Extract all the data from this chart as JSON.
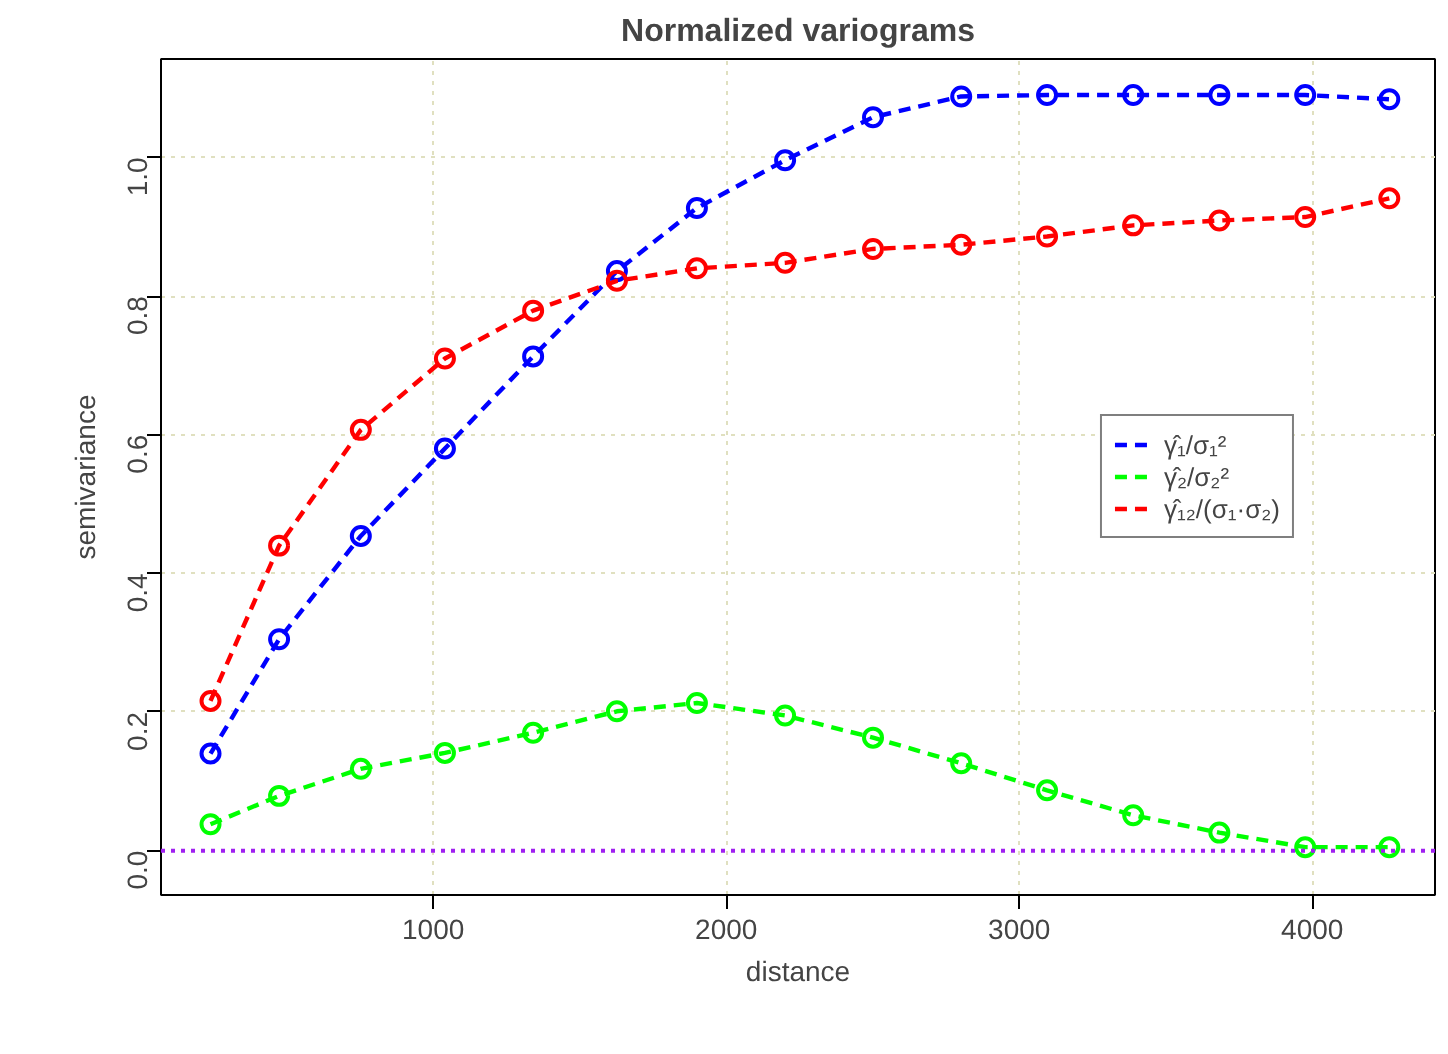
{
  "chart_data": {
    "type": "line",
    "title": "Normalized variograms",
    "xlabel": "distance",
    "ylabel": "semivariance",
    "x": [
      240,
      474,
      753,
      1040,
      1341,
      1627,
      1900,
      2201,
      2501,
      2802,
      3095,
      3389,
      3683,
      3976,
      4263
    ],
    "series": [
      {
        "name": "γ̂₁/σ₁²",
        "color": "#0000ff",
        "values": [
          0.14,
          0.305,
          0.454,
          0.58,
          0.713,
          0.836,
          0.927,
          0.996,
          1.058,
          1.088,
          1.09,
          1.09,
          1.09,
          1.09,
          1.084
        ]
      },
      {
        "name": "γ̂₂/σ₂²",
        "color": "#00ff00",
        "values": [
          0.038,
          0.079,
          0.118,
          0.141,
          0.17,
          0.201,
          0.213,
          0.195,
          0.163,
          0.126,
          0.087,
          0.051,
          0.026,
          0.005,
          0.005
        ]
      },
      {
        "name": "γ̂₁₂/(σ₁·σ₂)",
        "color": "#ff0000",
        "values": [
          0.216,
          0.44,
          0.607,
          0.71,
          0.779,
          0.822,
          0.84,
          0.848,
          0.868,
          0.874,
          0.886,
          0.902,
          0.909,
          0.914,
          0.941
        ]
      }
    ],
    "xlim": [
      71,
      4419
    ],
    "ylim": [
      -0.064,
      1.142
    ],
    "xticks": [
      1000,
      2000,
      3000,
      4000
    ],
    "yticks": [
      {
        "value": 0,
        "label": "0.0"
      },
      0.2,
      0.4,
      0.6,
      0.8,
      {
        "value": 1,
        "label": "1.0"
      }
    ],
    "ref_lines": [
      {
        "axis": "y",
        "value": 0,
        "color": "#a020f0",
        "line_style": "dotted"
      }
    ],
    "grid": true,
    "legend": "right",
    "marker": "circle",
    "line_style": "dashed"
  }
}
